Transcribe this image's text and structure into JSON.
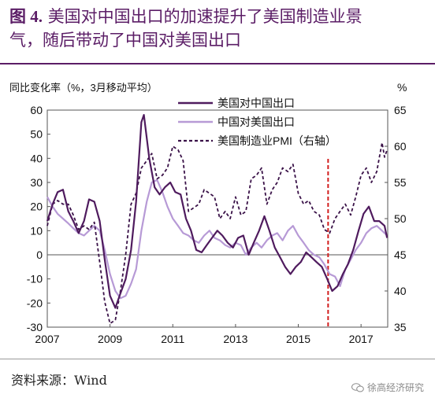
{
  "title": {
    "figure_num": "图 4.",
    "line1": "美国对中国出口的加速提升了美国制造业景",
    "line2": "气，随后带动了中国对美国出口"
  },
  "source": "资料来源：Wind",
  "watermark": "徐高经济研究",
  "colors": {
    "title": "#5b1d66",
    "us_to_china": "#4f1b5e",
    "china_to_us": "#b79ad6",
    "pmi": "#3a1248",
    "marker": "#d21f1f"
  },
  "chart_data": {
    "type": "line",
    "ylabel_left": "同比变化率（%，3月移动平均）",
    "ylabel_right": "%",
    "xlim": [
      2007.0,
      2017.85
    ],
    "ylim_left": [
      -30,
      60
    ],
    "ylim_right": [
      35,
      65
    ],
    "x_ticks": [
      2007,
      2009,
      2011,
      2013,
      2015,
      2017
    ],
    "y_ticks_left": [
      -30,
      -20,
      -10,
      0,
      10,
      20,
      30,
      40,
      50,
      60
    ],
    "y_ticks_right": [
      35,
      40,
      45,
      50,
      55,
      60,
      65
    ],
    "legend_position": "top-right",
    "vertical_marker_x": 2015.95,
    "series": [
      {
        "name": "美国对中国出口",
        "axis": "left",
        "style": "solid",
        "points": [
          [
            2007.0,
            14
          ],
          [
            2007.17,
            21
          ],
          [
            2007.33,
            26
          ],
          [
            2007.5,
            27
          ],
          [
            2007.67,
            18
          ],
          [
            2007.83,
            14
          ],
          [
            2008.0,
            9
          ],
          [
            2008.17,
            14
          ],
          [
            2008.33,
            23
          ],
          [
            2008.5,
            22
          ],
          [
            2008.67,
            14
          ],
          [
            2008.83,
            -2
          ],
          [
            2009.0,
            -17
          ],
          [
            2009.17,
            -22
          ],
          [
            2009.33,
            -16
          ],
          [
            2009.5,
            -10
          ],
          [
            2009.67,
            2
          ],
          [
            2009.83,
            22
          ],
          [
            2010.0,
            55
          ],
          [
            2010.08,
            58
          ],
          [
            2010.25,
            40
          ],
          [
            2010.42,
            28
          ],
          [
            2010.58,
            25
          ],
          [
            2010.75,
            28
          ],
          [
            2010.92,
            30
          ],
          [
            2011.08,
            26
          ],
          [
            2011.25,
            25
          ],
          [
            2011.42,
            15
          ],
          [
            2011.58,
            10
          ],
          [
            2011.75,
            2
          ],
          [
            2011.92,
            1
          ],
          [
            2012.08,
            4
          ],
          [
            2012.25,
            7
          ],
          [
            2012.42,
            10
          ],
          [
            2012.58,
            8
          ],
          [
            2012.75,
            5
          ],
          [
            2012.92,
            3
          ],
          [
            2013.08,
            7
          ],
          [
            2013.25,
            8
          ],
          [
            2013.42,
            0
          ],
          [
            2013.58,
            5
          ],
          [
            2013.75,
            10
          ],
          [
            2013.92,
            16
          ],
          [
            2014.08,
            10
          ],
          [
            2014.25,
            3
          ],
          [
            2014.42,
            -1
          ],
          [
            2014.58,
            -5
          ],
          [
            2014.75,
            -8
          ],
          [
            2014.92,
            -5
          ],
          [
            2015.08,
            -3
          ],
          [
            2015.25,
            1
          ],
          [
            2015.42,
            -1
          ],
          [
            2015.58,
            -3
          ],
          [
            2015.75,
            -5
          ],
          [
            2015.92,
            -10
          ],
          [
            2016.08,
            -15
          ],
          [
            2016.25,
            -13
          ],
          [
            2016.42,
            -8
          ],
          [
            2016.58,
            -4
          ],
          [
            2016.75,
            2
          ],
          [
            2016.92,
            10
          ],
          [
            2017.08,
            17
          ],
          [
            2017.25,
            20
          ],
          [
            2017.42,
            14
          ],
          [
            2017.58,
            14
          ],
          [
            2017.75,
            12
          ],
          [
            2017.83,
            7
          ]
        ]
      },
      {
        "name": "中国对美国出口",
        "axis": "left",
        "style": "solid",
        "points": [
          [
            2007.0,
            24
          ],
          [
            2007.17,
            20
          ],
          [
            2007.33,
            17
          ],
          [
            2007.5,
            15
          ],
          [
            2007.67,
            13
          ],
          [
            2007.83,
            11
          ],
          [
            2008.0,
            9
          ],
          [
            2008.17,
            8
          ],
          [
            2008.33,
            10
          ],
          [
            2008.5,
            12
          ],
          [
            2008.67,
            10
          ],
          [
            2008.83,
            2
          ],
          [
            2009.0,
            -8
          ],
          [
            2009.17,
            -15
          ],
          [
            2009.33,
            -18
          ],
          [
            2009.5,
            -17
          ],
          [
            2009.67,
            -12
          ],
          [
            2009.83,
            -6
          ],
          [
            2010.0,
            10
          ],
          [
            2010.17,
            22
          ],
          [
            2010.33,
            30
          ],
          [
            2010.5,
            31
          ],
          [
            2010.67,
            26
          ],
          [
            2010.83,
            20
          ],
          [
            2011.0,
            15
          ],
          [
            2011.17,
            12
          ],
          [
            2011.33,
            9
          ],
          [
            2011.5,
            8
          ],
          [
            2011.67,
            6
          ],
          [
            2011.83,
            5
          ],
          [
            2012.0,
            8
          ],
          [
            2012.17,
            10
          ],
          [
            2012.33,
            7
          ],
          [
            2012.5,
            6
          ],
          [
            2012.67,
            4
          ],
          [
            2012.83,
            3
          ],
          [
            2013.0,
            5
          ],
          [
            2013.17,
            4
          ],
          [
            2013.33,
            0
          ],
          [
            2013.5,
            3
          ],
          [
            2013.67,
            5
          ],
          [
            2013.83,
            3
          ],
          [
            2014.0,
            6
          ],
          [
            2014.17,
            8
          ],
          [
            2014.33,
            9
          ],
          [
            2014.5,
            6
          ],
          [
            2014.67,
            10
          ],
          [
            2014.83,
            12
          ],
          [
            2015.0,
            8
          ],
          [
            2015.17,
            5
          ],
          [
            2015.33,
            2
          ],
          [
            2015.5,
            0
          ],
          [
            2015.67,
            -1
          ],
          [
            2015.83,
            -4
          ],
          [
            2016.0,
            -8
          ],
          [
            2016.17,
            -9
          ],
          [
            2016.33,
            -13
          ],
          [
            2016.5,
            -6
          ],
          [
            2016.67,
            -2
          ],
          [
            2016.83,
            2
          ],
          [
            2017.0,
            5
          ],
          [
            2017.17,
            9
          ],
          [
            2017.33,
            11
          ],
          [
            2017.5,
            12
          ],
          [
            2017.67,
            10
          ],
          [
            2017.83,
            8
          ]
        ]
      },
      {
        "name": "美国制造业PMI（右轴）",
        "axis": "right",
        "style": "dashed",
        "points": [
          [
            2007.0,
            49
          ],
          [
            2007.17,
            52
          ],
          [
            2007.33,
            52.5
          ],
          [
            2007.5,
            52
          ],
          [
            2007.67,
            52
          ],
          [
            2007.83,
            50.5
          ],
          [
            2008.0,
            48.5
          ],
          [
            2008.17,
            49
          ],
          [
            2008.33,
            48.5
          ],
          [
            2008.5,
            49.5
          ],
          [
            2008.67,
            44
          ],
          [
            2008.83,
            38.5
          ],
          [
            2009.0,
            35.5
          ],
          [
            2009.17,
            36
          ],
          [
            2009.33,
            40
          ],
          [
            2009.5,
            45
          ],
          [
            2009.67,
            52
          ],
          [
            2009.83,
            53.5
          ],
          [
            2010.0,
            57
          ],
          [
            2010.17,
            58
          ],
          [
            2010.33,
            59
          ],
          [
            2010.5,
            55.5
          ],
          [
            2010.67,
            56
          ],
          [
            2010.83,
            57
          ],
          [
            2011.0,
            60
          ],
          [
            2011.17,
            59.5
          ],
          [
            2011.33,
            58
          ],
          [
            2011.5,
            51
          ],
          [
            2011.67,
            51.5
          ],
          [
            2011.83,
            52
          ],
          [
            2012.0,
            54
          ],
          [
            2012.17,
            53.5
          ],
          [
            2012.33,
            53
          ],
          [
            2012.5,
            50
          ],
          [
            2012.67,
            51
          ],
          [
            2012.83,
            50
          ],
          [
            2013.0,
            53
          ],
          [
            2013.17,
            50.5
          ],
          [
            2013.33,
            51
          ],
          [
            2013.5,
            55.5
          ],
          [
            2013.67,
            56
          ],
          [
            2013.83,
            57
          ],
          [
            2014.0,
            52
          ],
          [
            2014.17,
            54
          ],
          [
            2014.33,
            55
          ],
          [
            2014.5,
            57
          ],
          [
            2014.67,
            56.5
          ],
          [
            2014.83,
            57.5
          ],
          [
            2015.0,
            53.5
          ],
          [
            2015.17,
            52
          ],
          [
            2015.33,
            52.5
          ],
          [
            2015.5,
            51
          ],
          [
            2015.67,
            50.5
          ],
          [
            2015.83,
            48.5
          ],
          [
            2016.0,
            48
          ],
          [
            2016.17,
            50
          ],
          [
            2016.33,
            51
          ],
          [
            2016.5,
            52
          ],
          [
            2016.67,
            50.5
          ],
          [
            2016.83,
            53
          ],
          [
            2017.0,
            56
          ],
          [
            2017.17,
            57
          ],
          [
            2017.33,
            55
          ],
          [
            2017.5,
            56.5
          ],
          [
            2017.67,
            60.5
          ],
          [
            2017.75,
            58.5
          ],
          [
            2017.83,
            59.5
          ]
        ]
      }
    ]
  }
}
